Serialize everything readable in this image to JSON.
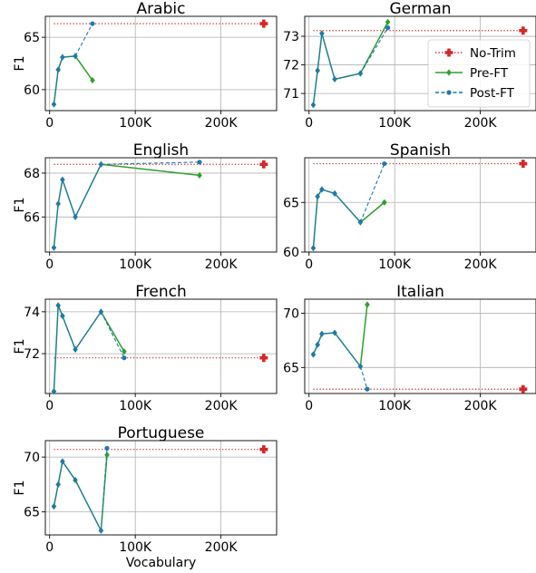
{
  "figure": {
    "xlabel": "Vocabulary",
    "ylabel": "F1",
    "legend": {
      "placement": "inside German panel, right",
      "entries": [
        {
          "label": "No-Trim",
          "color": "#d62728",
          "style": "dotted",
          "marker": "plus"
        },
        {
          "label": "Pre-FT",
          "color": "#2ca02c",
          "style": "solid",
          "marker": "diamond"
        },
        {
          "label": "Post-FT",
          "color": "#1f77b4",
          "style": "dashed",
          "marker": "circle"
        }
      ]
    }
  },
  "chart_data": [
    {
      "type": "line",
      "title": "Arabic",
      "xlim": [
        -5000,
        265000
      ],
      "ylim": [
        58,
        67
      ],
      "xticks": [
        0,
        100000,
        200000
      ],
      "xtick_labels": [
        "0",
        "100K",
        "200K"
      ],
      "yticks": [
        60,
        65
      ],
      "ytick_labels": [
        "60",
        "65"
      ],
      "notrim": {
        "x": [
          5000,
          250000
        ],
        "y": [
          66.3,
          66.3
        ]
      },
      "series": [
        {
          "name": "Pre-FT",
          "x": [
            5000,
            10000,
            15000,
            30000,
            50000
          ],
          "y": [
            58.6,
            61.9,
            63.1,
            63.2,
            60.9
          ]
        },
        {
          "name": "Post-FT",
          "x": [
            5000,
            10000,
            15000,
            30000,
            50000
          ],
          "y": [
            58.6,
            61.9,
            63.1,
            63.2,
            66.3
          ]
        }
      ]
    },
    {
      "type": "line",
      "title": "German",
      "xlim": [
        -5000,
        265000
      ],
      "ylim": [
        70.4,
        73.7
      ],
      "xticks": [
        0,
        100000,
        200000
      ],
      "xtick_labels": [
        "0",
        "100K",
        "200K"
      ],
      "yticks": [
        71,
        72,
        73
      ],
      "ytick_labels": [
        "71",
        "72",
        "73"
      ],
      "notrim": {
        "x": [
          5000,
          250000
        ],
        "y": [
          73.2,
          73.2
        ]
      },
      "series": [
        {
          "name": "Pre-FT",
          "x": [
            5000,
            10000,
            15000,
            30000,
            60000,
            92000
          ],
          "y": [
            70.6,
            71.8,
            73.1,
            71.5,
            71.7,
            73.5
          ]
        },
        {
          "name": "Post-FT",
          "x": [
            5000,
            10000,
            15000,
            30000,
            60000,
            92000
          ],
          "y": [
            70.6,
            71.8,
            73.1,
            71.5,
            71.7,
            73.3
          ]
        }
      ]
    },
    {
      "type": "line",
      "title": "English",
      "xlim": [
        -5000,
        265000
      ],
      "ylim": [
        64.4,
        68.7
      ],
      "xticks": [
        0,
        100000,
        200000
      ],
      "xtick_labels": [
        "0",
        "100K",
        "200K"
      ],
      "yticks": [
        66,
        68
      ],
      "ytick_labels": [
        "66",
        "68"
      ],
      "notrim": {
        "x": [
          5000,
          250000
        ],
        "y": [
          68.4,
          68.4
        ]
      },
      "series": [
        {
          "name": "Pre-FT",
          "x": [
            5000,
            10000,
            15000,
            30000,
            60000,
            175000
          ],
          "y": [
            64.6,
            66.6,
            67.7,
            66.0,
            68.4,
            67.9
          ]
        },
        {
          "name": "Post-FT",
          "x": [
            5000,
            10000,
            15000,
            30000,
            60000,
            175000
          ],
          "y": [
            64.6,
            66.6,
            67.7,
            66.0,
            68.4,
            68.5
          ]
        }
      ]
    },
    {
      "type": "line",
      "title": "Spanish",
      "xlim": [
        -5000,
        265000
      ],
      "ylim": [
        60,
        69.5
      ],
      "xticks": [
        0,
        100000,
        200000
      ],
      "xtick_labels": [
        "0",
        "100K",
        "200K"
      ],
      "yticks": [
        60,
        65
      ],
      "ytick_labels": [
        "60",
        "65"
      ],
      "notrim": {
        "x": [
          5000,
          250000
        ],
        "y": [
          68.9,
          68.9
        ]
      },
      "series": [
        {
          "name": "Pre-FT",
          "x": [
            5000,
            10000,
            15000,
            30000,
            60000,
            88000
          ],
          "y": [
            60.4,
            65.6,
            66.3,
            65.9,
            63.0,
            65.0
          ]
        },
        {
          "name": "Post-FT",
          "x": [
            5000,
            10000,
            15000,
            30000,
            60000,
            88000
          ],
          "y": [
            60.4,
            65.6,
            66.3,
            65.9,
            63.0,
            68.9
          ]
        }
      ]
    },
    {
      "type": "line",
      "title": "French",
      "xlim": [
        -5000,
        265000
      ],
      "ylim": [
        70.1,
        74.6
      ],
      "xticks": [
        0,
        100000,
        200000
      ],
      "xtick_labels": [
        "0",
        "100K",
        "200K"
      ],
      "yticks": [
        72,
        74
      ],
      "ytick_labels": [
        "72",
        "74"
      ],
      "notrim": {
        "x": [
          5000,
          250000
        ],
        "y": [
          71.8,
          71.8
        ]
      },
      "series": [
        {
          "name": "Pre-FT",
          "x": [
            5000,
            10000,
            15000,
            30000,
            60000,
            87000
          ],
          "y": [
            70.2,
            74.3,
            73.8,
            72.2,
            74.0,
            72.1
          ]
        },
        {
          "name": "Post-FT",
          "x": [
            5000,
            10000,
            15000,
            30000,
            60000,
            87000
          ],
          "y": [
            70.2,
            74.3,
            73.8,
            72.2,
            74.0,
            71.8
          ]
        }
      ]
    },
    {
      "type": "line",
      "title": "Italian",
      "xlim": [
        -5000,
        265000
      ],
      "ylim": [
        62.6,
        71.3
      ],
      "xticks": [
        0,
        100000,
        200000
      ],
      "xtick_labels": [
        "0",
        "100K",
        "200K"
      ],
      "yticks": [
        65,
        70
      ],
      "ytick_labels": [
        "65",
        "70"
      ],
      "notrim": {
        "x": [
          5000,
          250000
        ],
        "y": [
          63.0,
          63.0
        ]
      },
      "series": [
        {
          "name": "Pre-FT",
          "x": [
            5000,
            10000,
            15000,
            30000,
            60000,
            68000
          ],
          "y": [
            66.2,
            67.1,
            68.1,
            68.2,
            65.1,
            70.8
          ]
        },
        {
          "name": "Post-FT",
          "x": [
            5000,
            10000,
            15000,
            30000,
            60000,
            68000
          ],
          "y": [
            66.2,
            67.1,
            68.1,
            68.2,
            65.1,
            63.0
          ]
        }
      ]
    },
    {
      "type": "line",
      "title": "Portuguese",
      "xlim": [
        -5000,
        265000
      ],
      "ylim": [
        62.9,
        71.5
      ],
      "xticks": [
        0,
        100000,
        200000
      ],
      "xtick_labels": [
        "0",
        "100K",
        "200K"
      ],
      "yticks": [
        65,
        70
      ],
      "ytick_labels": [
        "65",
        "70"
      ],
      "notrim": {
        "x": [
          5000,
          250000
        ],
        "y": [
          70.7,
          70.7
        ]
      },
      "series": [
        {
          "name": "Pre-FT",
          "x": [
            5000,
            10000,
            15000,
            30000,
            60000,
            67000
          ],
          "y": [
            65.5,
            67.5,
            69.6,
            67.9,
            63.3,
            70.2
          ]
        },
        {
          "name": "Post-FT",
          "x": [
            5000,
            10000,
            15000,
            30000,
            60000,
            67000
          ],
          "y": [
            65.5,
            67.5,
            69.6,
            67.9,
            63.3,
            70.8
          ]
        }
      ]
    }
  ]
}
